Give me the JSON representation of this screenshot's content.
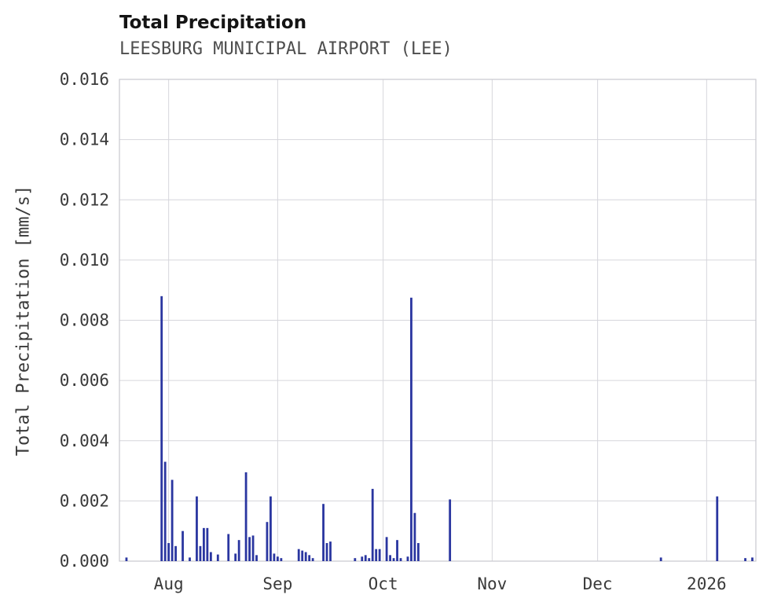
{
  "chart_data": {
    "type": "bar",
    "title": "Total Precipitation",
    "subtitle": "LEESBURG MUNICIPAL AIRPORT (LEE)",
    "xlabel": "",
    "ylabel": "Total Precipitation [mm/s]",
    "ylim": [
      0.0,
      0.016
    ],
    "yticks": [
      0.0,
      0.002,
      0.004,
      0.006,
      0.008,
      0.01,
      0.012,
      0.014,
      0.016
    ],
    "ytick_format_decimals": 3,
    "x_domain": [
      "2025-07-18",
      "2026-01-15"
    ],
    "xticks": [
      {
        "date": "2025-08-01",
        "label": "Aug"
      },
      {
        "date": "2025-09-01",
        "label": "Sep"
      },
      {
        "date": "2025-10-01",
        "label": "Oct"
      },
      {
        "date": "2025-11-01",
        "label": "Nov"
      },
      {
        "date": "2025-12-01",
        "label": "Dec"
      },
      {
        "date": "2026-01-01",
        "label": "2026"
      }
    ],
    "grid": true,
    "legend": false,
    "colors": {
      "bar": "#2a36a0",
      "grid": "#d6d6dc",
      "frame": "#c9c9cf",
      "tick_text": "#3a3a3a",
      "title_text": "#141414",
      "subtitle_text": "#4d4d4d"
    },
    "points": [
      [
        "2025-07-20",
        0.00012
      ],
      [
        "2025-07-30",
        0.0088
      ],
      [
        "2025-07-31",
        0.0033
      ],
      [
        "2025-08-01",
        0.0006
      ],
      [
        "2025-08-02",
        0.0027
      ],
      [
        "2025-08-03",
        0.0005
      ],
      [
        "2025-08-05",
        0.001
      ],
      [
        "2025-08-07",
        0.00012
      ],
      [
        "2025-08-09",
        0.00215
      ],
      [
        "2025-08-10",
        0.0005
      ],
      [
        "2025-08-11",
        0.0011
      ],
      [
        "2025-08-12",
        0.0011
      ],
      [
        "2025-08-13",
        0.0003
      ],
      [
        "2025-08-15",
        0.00022
      ],
      [
        "2025-08-18",
        0.0009
      ],
      [
        "2025-08-20",
        0.00025
      ],
      [
        "2025-08-21",
        0.0007
      ],
      [
        "2025-08-23",
        0.00295
      ],
      [
        "2025-08-24",
        0.0008
      ],
      [
        "2025-08-25",
        0.00085
      ],
      [
        "2025-08-26",
        0.0002
      ],
      [
        "2025-08-29",
        0.0013
      ],
      [
        "2025-08-30",
        0.00215
      ],
      [
        "2025-08-31",
        0.00025
      ],
      [
        "2025-09-01",
        0.00015
      ],
      [
        "2025-09-02",
        0.0001
      ],
      [
        "2025-09-07",
        0.0004
      ],
      [
        "2025-09-08",
        0.00035
      ],
      [
        "2025-09-09",
        0.0003
      ],
      [
        "2025-09-10",
        0.0002
      ],
      [
        "2025-09-11",
        0.0001
      ],
      [
        "2025-09-14",
        0.0019
      ],
      [
        "2025-09-15",
        0.0006
      ],
      [
        "2025-09-16",
        0.00065
      ],
      [
        "2025-09-23",
        0.0001
      ],
      [
        "2025-09-25",
        0.00015
      ],
      [
        "2025-09-26",
        0.0002
      ],
      [
        "2025-09-27",
        0.0001
      ],
      [
        "2025-09-28",
        0.0024
      ],
      [
        "2025-09-29",
        0.0004
      ],
      [
        "2025-09-30",
        0.0004
      ],
      [
        "2025-10-02",
        0.0008
      ],
      [
        "2025-10-03",
        0.0002
      ],
      [
        "2025-10-04",
        0.0001
      ],
      [
        "2025-10-05",
        0.0007
      ],
      [
        "2025-10-06",
        0.0001
      ],
      [
        "2025-10-08",
        0.00015
      ],
      [
        "2025-10-09",
        0.00875
      ],
      [
        "2025-10-10",
        0.0016
      ],
      [
        "2025-10-11",
        0.0006
      ],
      [
        "2025-10-20",
        0.00205
      ],
      [
        "2025-12-19",
        0.00012
      ],
      [
        "2026-01-04",
        0.00215
      ],
      [
        "2026-01-12",
        0.0001
      ],
      [
        "2026-01-14",
        0.00012
      ]
    ]
  }
}
